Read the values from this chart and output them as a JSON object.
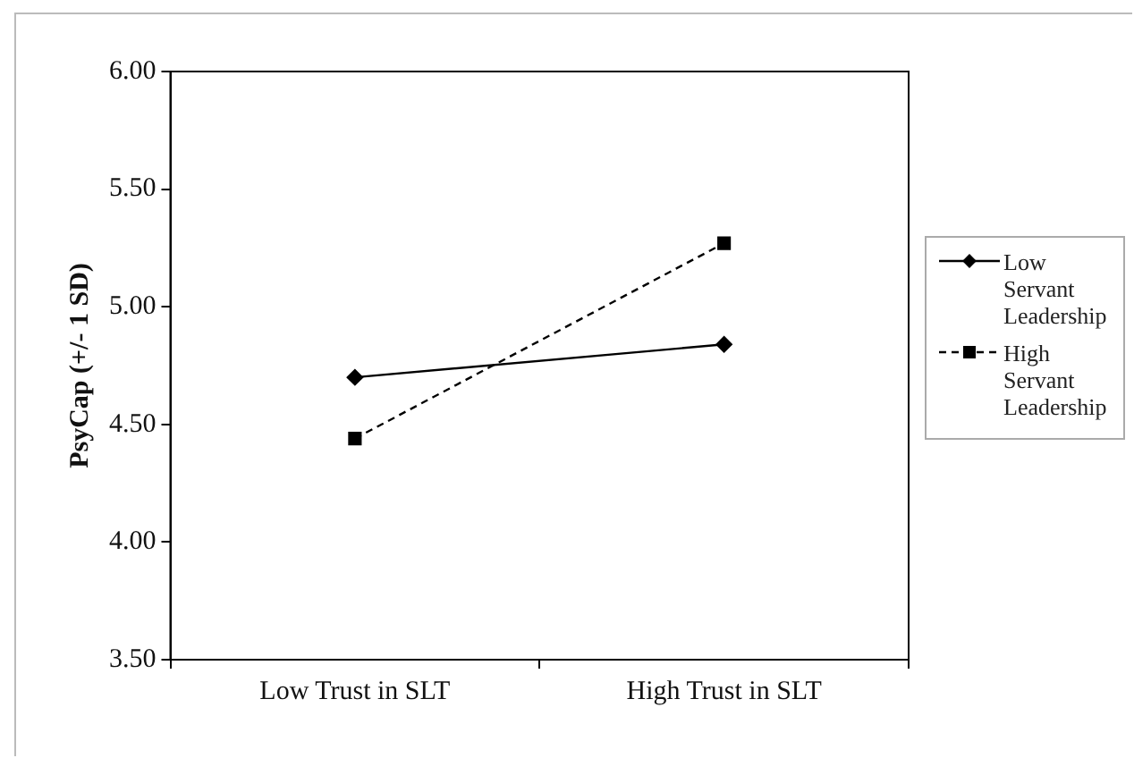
{
  "chart_data": {
    "type": "line",
    "ylabel": "PsyCap (+/- 1 SD)",
    "categories": [
      "Low Trust in SLT",
      "High Trust in SLT"
    ],
    "series": [
      {
        "name": "Low Servant Leadership",
        "color": "#000000",
        "values": [
          4.7,
          4.84
        ],
        "marker": "diamond",
        "line_style": "solid"
      },
      {
        "name": "High Servant Leadership",
        "color": "#000000",
        "values": [
          4.44,
          5.27
        ],
        "marker": "square",
        "line_style": "dashed"
      }
    ],
    "ylim": [
      3.5,
      6
    ],
    "yticks": [
      {
        "value": 3.5,
        "label": "3.50"
      },
      {
        "value": 4,
        "label": "4.00"
      },
      {
        "value": 4.5,
        "label": "4.50"
      },
      {
        "value": 5,
        "label": "5.00"
      },
      {
        "value": 5.5,
        "label": "5.50"
      },
      {
        "value": 6,
        "label": "6.00"
      }
    ],
    "grid": false,
    "legend": "right"
  }
}
